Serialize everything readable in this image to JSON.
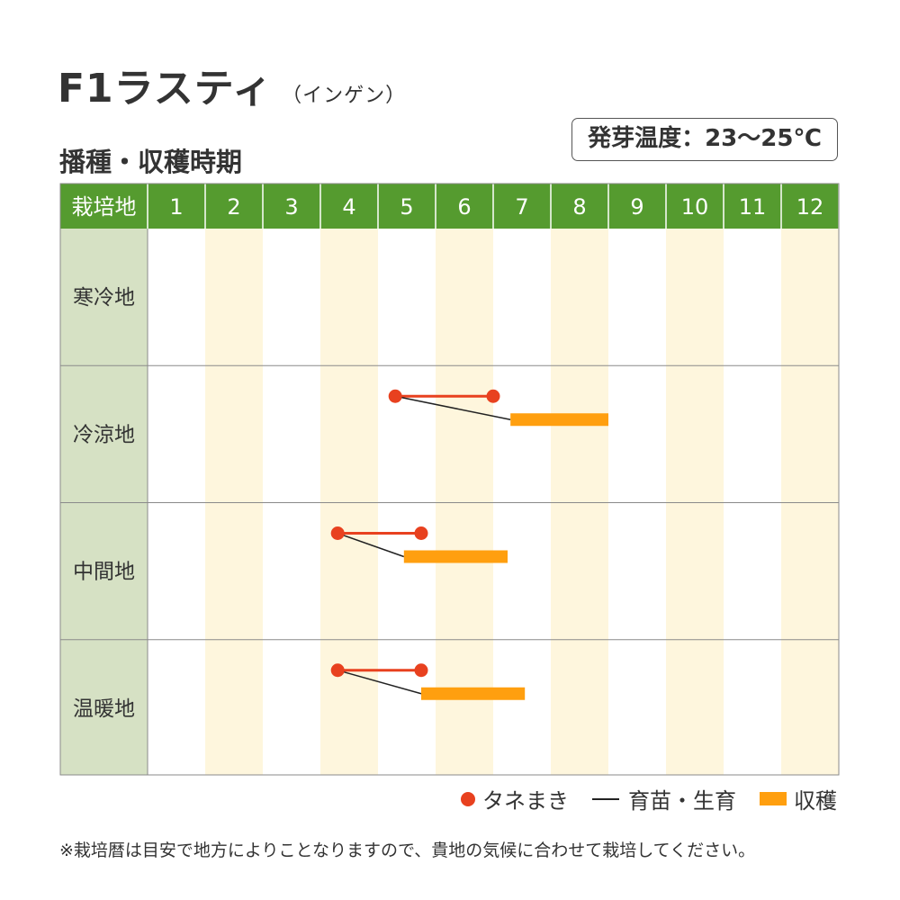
{
  "title": "F1ラスティ",
  "subtitle": "（インゲン）",
  "germination_temp": "発芽温度：23〜25℃",
  "section_title": "播種・収穫時期",
  "chart_data": {
    "type": "gantt",
    "header_label": "栽培地",
    "months": [
      "1",
      "2",
      "3",
      "4",
      "5",
      "6",
      "7",
      "8",
      "9",
      "10",
      "11",
      "12"
    ],
    "rows": [
      {
        "label": "寒冷地"
      },
      {
        "label": "冷涼地",
        "sowing": [
          5.3,
          7.0
        ],
        "harvest": [
          7.3,
          9.0
        ]
      },
      {
        "label": "中間地",
        "sowing": [
          4.3,
          5.75
        ],
        "harvest": [
          5.45,
          7.25
        ]
      },
      {
        "label": "温暖地",
        "sowing": [
          4.3,
          5.75
        ],
        "harvest": [
          5.75,
          7.55
        ]
      }
    ],
    "colors": {
      "header": "#559b2f",
      "label_col": "#d6e1c4",
      "stripe": "#fef6dd",
      "sowing": "#e8411f",
      "growing": "#222222",
      "harvest": "#ff9f0f"
    }
  },
  "legend": {
    "sowing": "タネまき",
    "growing": "育苗・生育",
    "harvest": "収穫"
  },
  "note": "※栽培暦は目安で地方によりことなりますので、貴地の気候に合わせて栽培してください。"
}
